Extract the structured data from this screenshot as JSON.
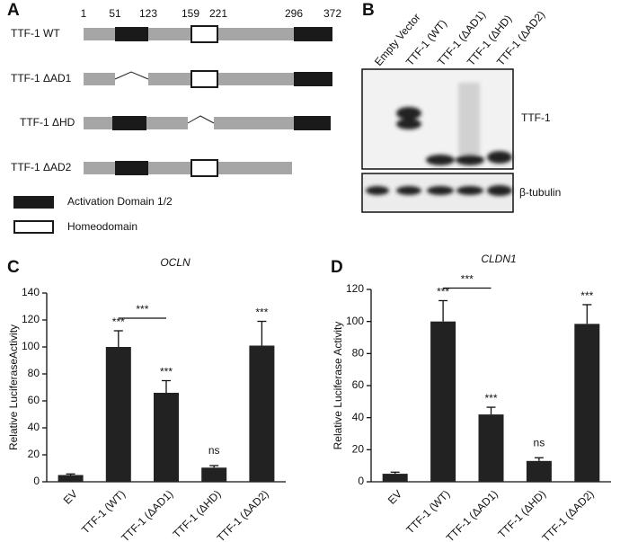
{
  "panels": [
    "A",
    "B",
    "C",
    "D"
  ],
  "diagram": {
    "positions": [
      1,
      51,
      123,
      159,
      221,
      296,
      372
    ],
    "constructs": [
      "TTF-1 WT",
      "TTF-1 ΔAD1",
      "TTF-1 ΔHD",
      "TTF-1 ΔAD2"
    ],
    "legend": [
      "Activation Domain 1/2",
      "Homeodomain"
    ]
  },
  "blot": {
    "lanes": [
      "Empty Vector",
      "TTF-1 (WT)",
      "TTF-1 (ΔAD1)",
      "TTF-1 (ΔHD)",
      "TTF-1 (ΔAD2)"
    ],
    "bands": [
      "TTF-1",
      "β-tubulin"
    ]
  },
  "chart_data": [
    {
      "type": "bar",
      "title": "OCLN",
      "y_label": "Relative LuciferaseActivity",
      "categories": [
        "EV",
        "TTF-1 (WT)",
        "TTF-1 (ΔAD1)",
        "TTF-1 (ΔHD)",
        "TTF-1 (ΔAD2)"
      ],
      "values": [
        5,
        100,
        66,
        10.5,
        101
      ],
      "errors": [
        0.8,
        12,
        9,
        1.5,
        18
      ],
      "color": "#222222",
      "ylim": [
        0,
        140
      ],
      "yticks": [
        0,
        20,
        40,
        60,
        80,
        100,
        120,
        140
      ],
      "significance": [
        null,
        "***",
        "***",
        "ns",
        "***"
      ],
      "comparison": {
        "label": "***",
        "categories": [
          "TTF-1 (WT)",
          "TTF-1 (ΔAD1)"
        ]
      }
    },
    {
      "type": "bar",
      "title": "CLDN1",
      "y_label": "Relative Luciferase Activity",
      "categories": [
        "EV",
        "TTF-1 (WT)",
        "TTF-1 (ΔAD1)",
        "TTF-1 (ΔHD)",
        "TTF-1 (ΔAD2)"
      ],
      "values": [
        5,
        100,
        42,
        13,
        98.5
      ],
      "errors": [
        1,
        13,
        4.5,
        2,
        12
      ],
      "color": "#222222",
      "ylim": [
        0,
        120
      ],
      "yticks": [
        0,
        20,
        40,
        60,
        80,
        100,
        120
      ],
      "significance": [
        null,
        "***",
        "***",
        "ns",
        "***"
      ],
      "comparison": {
        "label": "***",
        "categories": [
          "TTF-1 (WT)",
          "TTF-1 (ΔAD1)"
        ]
      }
    }
  ]
}
